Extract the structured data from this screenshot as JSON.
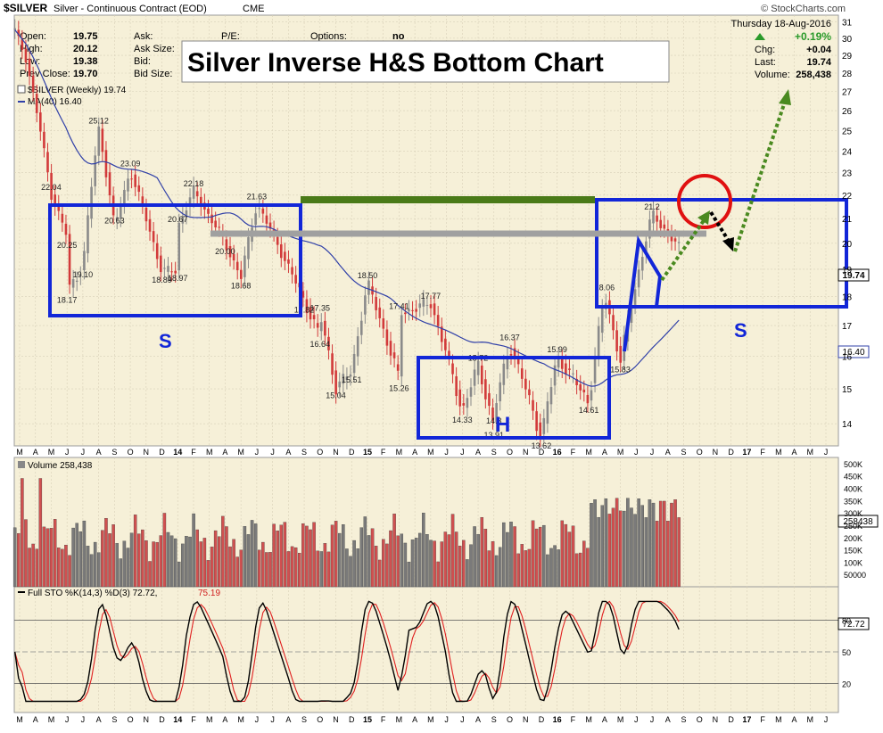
{
  "header": {
    "symbol": "$SILVER",
    "description": "Silver - Continuous Contract (EOD)",
    "exchange": "CME",
    "copyright": "© StockCharts.com",
    "date": "Thursday  18-Aug-2016"
  },
  "quote": {
    "open_label": "Open:",
    "open": "19.75",
    "high_label": "High:",
    "high": "20.12",
    "low_label": "Low:",
    "low": "19.38",
    "prev_close_label": "Prev Close:",
    "prev_close": "19.70",
    "ask_label": "Ask:",
    "ask_size_label": "Ask Size:",
    "bid_label": "Bid:",
    "bid_size_label": "Bid Size:",
    "pe_label": "P/E:",
    "options_label": "Options:",
    "options": "no",
    "change_pct": "+0.19%",
    "chg_label": "Chg:",
    "chg": "+0.04",
    "last_label": "Last:",
    "last": "19.74",
    "volume_label": "Volume:",
    "volume": "258,438"
  },
  "annotation_title": "Silver Inverse H&S Bottom Chart",
  "legend": {
    "price": "$SILVER (Weekly) 19.74",
    "ma": "MA(40) 16.40",
    "volume": "Volume 258,438",
    "sto_prefix": "Full STO %K(14,3) %D(3) 72.72,",
    "sto_d": "75.19"
  },
  "pattern_labels": {
    "left_shoulder": "S",
    "head": "H",
    "right_shoulder": "S"
  },
  "price_tag": "19.74",
  "ma_tag": "16.40",
  "volume_tag": "258438",
  "sto_tag": "72.72",
  "colors": {
    "panel_bg": "#f6f0d8",
    "up_bar": "#8a8a8a",
    "down_bar": "#d23a3a",
    "ma_line": "#3040a8",
    "box": "#1226d8",
    "green_bar": "#4a7a18",
    "gray_bar": "#a0a0a0",
    "target": "#e01010",
    "arrow_green": "#4a8a20",
    "quote_up": "#2a9a2a"
  },
  "chart_data": [
    {
      "type": "candlestick",
      "title": "$SILVER (Weekly) 19.74",
      "y_axis_ticks": [
        "31",
        "30",
        "29",
        "28",
        "27",
        "26",
        "25",
        "24",
        "23",
        "22",
        "21",
        "20",
        "19",
        "18",
        "17",
        "16",
        "15",
        "14"
      ],
      "y_scale": "log",
      "x_axis_ticks": [
        "M",
        "A",
        "M",
        "J",
        "J",
        "A",
        "S",
        "O",
        "N",
        "D",
        "14",
        "F",
        "M",
        "A",
        "M",
        "J",
        "J",
        "A",
        "S",
        "O",
        "N",
        "D",
        "15",
        "F",
        "M",
        "A",
        "M",
        "J",
        "J",
        "A",
        "S",
        "O",
        "N",
        "D",
        "16",
        "F",
        "M",
        "A",
        "M",
        "J",
        "J",
        "A",
        "S",
        "O",
        "N",
        "D",
        "17",
        "F",
        "M",
        "A",
        "M",
        "J"
      ],
      "series": [
        {
          "name": "MA(40) 16.40",
          "last": 16.4
        },
        {
          "name": "$SILVER (Weekly) 19.74",
          "last": 19.74
        }
      ],
      "price_labels": [
        {
          "x": "2013-05",
          "y": 22.04,
          "text": "22.04"
        },
        {
          "x": "2013-06",
          "y": 20.25,
          "text": "20.25"
        },
        {
          "x": "2013-06",
          "y": 18.17,
          "text": "18.17"
        },
        {
          "x": "2013-07",
          "y": 19.1,
          "text": "19.10"
        },
        {
          "x": "2013-08",
          "y": 25.12,
          "text": "25.12"
        },
        {
          "x": "2013-09",
          "y": 20.63,
          "text": "20.63"
        },
        {
          "x": "2013-10",
          "y": 23.09,
          "text": "23.09"
        },
        {
          "x": "2013-12",
          "y": 18.89,
          "text": "18.89"
        },
        {
          "x": "2014-01",
          "y": 18.97,
          "text": "18.97"
        },
        {
          "x": "2014-01",
          "y": 20.67,
          "text": "20.67"
        },
        {
          "x": "2014-02",
          "y": 22.18,
          "text": "22.18"
        },
        {
          "x": "2014-04",
          "y": 20.0,
          "text": "20.00"
        },
        {
          "x": "2014-05",
          "y": 18.68,
          "text": "18.68"
        },
        {
          "x": "2014-06",
          "y": 21.63,
          "text": "21.63"
        },
        {
          "x": "2014-09",
          "y": 17.82,
          "text": "17.82"
        },
        {
          "x": "2014-10",
          "y": 16.64,
          "text": "16.64"
        },
        {
          "x": "2014-10",
          "y": 17.35,
          "text": "17.35"
        },
        {
          "x": "2014-11",
          "y": 15.04,
          "text": "15.04"
        },
        {
          "x": "2014-12",
          "y": 15.51,
          "text": "15.51"
        },
        {
          "x": "2015-01",
          "y": 18.5,
          "text": "18.50"
        },
        {
          "x": "2015-03",
          "y": 15.26,
          "text": "15.26"
        },
        {
          "x": "2015-03",
          "y": 17.41,
          "text": "17.41"
        },
        {
          "x": "2015-05",
          "y": 17.77,
          "text": "17.77"
        },
        {
          "x": "2015-07",
          "y": 14.33,
          "text": "14.33"
        },
        {
          "x": "2015-08",
          "y": 15.72,
          "text": "15.72"
        },
        {
          "x": "2015-09",
          "y": 13.91,
          "text": "13.91"
        },
        {
          "x": "2015-09",
          "y": 14.3,
          "text": "14.3"
        },
        {
          "x": "2015-10",
          "y": 16.37,
          "text": "16.37"
        },
        {
          "x": "2015-12",
          "y": 13.62,
          "text": "13.62"
        },
        {
          "x": "2016-01",
          "y": 15.99,
          "text": "15.99"
        },
        {
          "x": "2016-03",
          "y": 14.61,
          "text": "14.61"
        },
        {
          "x": "2016-04",
          "y": 18.06,
          "text": "18.06"
        },
        {
          "x": "2016-05",
          "y": 15.83,
          "text": "15.83"
        },
        {
          "x": "2016-07",
          "y": 21.2,
          "text": "21.2"
        }
      ],
      "annotations": [
        "S",
        "H",
        "S",
        "Silver Inverse H&S Bottom Chart"
      ]
    },
    {
      "type": "bar",
      "title": "Volume 258,438",
      "y_axis_ticks": [
        "500K",
        "450K",
        "400K",
        "350K",
        "300K",
        "250K",
        "200K",
        "150K",
        "100K",
        "50000"
      ],
      "last": 258438
    },
    {
      "type": "line",
      "title": "Full STO %K(14,3) %D(3) 72.72, 75.19",
      "y_axis_ticks": [
        "80",
        "50",
        "20"
      ],
      "series": [
        {
          "name": "%K",
          "last": 72.72
        },
        {
          "name": "%D",
          "last": 75.19
        }
      ]
    }
  ]
}
